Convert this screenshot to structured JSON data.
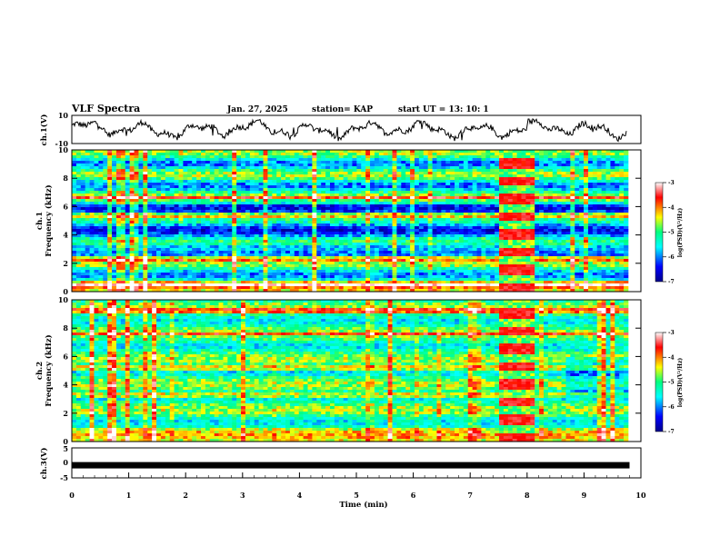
{
  "header": {
    "title": "VLF Spectra",
    "date": "Jan. 27, 2025",
    "station": "station= KAP",
    "start": "start  UT  =   13: 10: 1"
  },
  "chart_data": [
    {
      "type": "line",
      "ylabel": "ch.1(V)",
      "ylim": [
        -10,
        10
      ],
      "y_ticks": [
        "10",
        "-10"
      ],
      "xlim": [
        0,
        10
      ],
      "description_series": "noisy waveform oscillating between about -8 and 8 V"
    },
    {
      "type": "heatmap",
      "ylabel_line1": "ch.1",
      "ylabel_line2": "Frequency (kHz)",
      "ylim": [
        0,
        10
      ],
      "y_ticks": [
        "0",
        "2",
        "4",
        "6",
        "8",
        "10"
      ],
      "xlim": [
        0,
        10
      ],
      "colorbar_label": "log(PSD)(V²/Hz)",
      "colorbar_ticks": [
        "-3",
        "-4",
        "-5",
        "-6",
        "-7"
      ],
      "colorbar_range": [
        -7,
        -3
      ]
    },
    {
      "type": "heatmap",
      "ylabel_line1": "ch.2",
      "ylabel_line2": "Frequency (kHz)",
      "ylim": [
        0,
        10
      ],
      "y_ticks": [
        "0",
        "2",
        "4",
        "6",
        "8",
        "10"
      ],
      "xlim": [
        0,
        10
      ],
      "colorbar_label": "log(PSD)(V²/Hz)",
      "colorbar_ticks": [
        "-3",
        "-4",
        "-5",
        "-6",
        "-7"
      ],
      "colorbar_range": [
        -7,
        -3
      ]
    },
    {
      "type": "line",
      "ylabel": "ch.3(V)",
      "ylim": [
        -5,
        5
      ],
      "y_ticks": [
        "5",
        "0",
        "-5"
      ],
      "xlim": [
        0,
        10
      ],
      "xlabel": "Time  (min)",
      "x_ticks": [
        "0",
        "1",
        "2",
        "3",
        "4",
        "5",
        "6",
        "7",
        "8",
        "9",
        "10"
      ],
      "values_constant": -0.8,
      "data_end_min": 9.8
    }
  ],
  "colors": {
    "colormap": [
      "#00008b",
      "#0000ff",
      "#00ffff",
      "#00ff80",
      "#ffff00",
      "#ff0000",
      "#ffffff"
    ]
  }
}
